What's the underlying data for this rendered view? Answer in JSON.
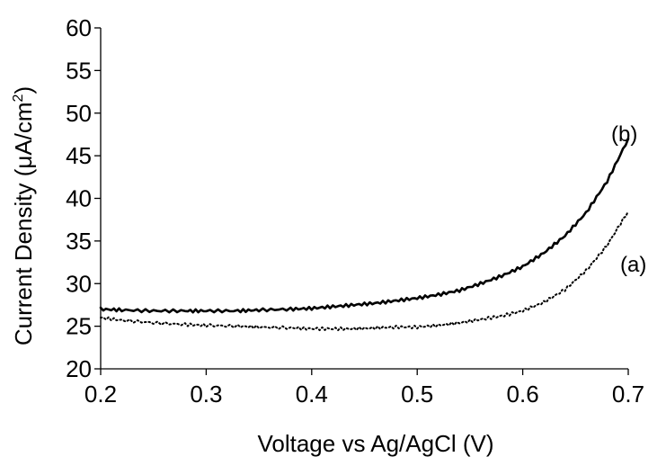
{
  "chart_data": {
    "type": "line",
    "title": "",
    "xlabel": "Voltage vs Ag/AgCl (V)",
    "ylabel": "Current Density (μA/cm²)",
    "ylabel_main": "Current Density (μA/cm",
    "ylabel_sup": "2",
    "ylabel_end": ")",
    "xlim": [
      0.2,
      0.7
    ],
    "ylim": [
      20,
      60
    ],
    "xticks": [
      "0.2",
      "0.3",
      "0.4",
      "0.5",
      "0.6",
      "0.7"
    ],
    "yticks": [
      "20",
      "25",
      "30",
      "35",
      "40",
      "45",
      "50",
      "55",
      "60"
    ],
    "grid": false,
    "series": [
      {
        "name": "(a)",
        "style": "dotted",
        "color": "#000000",
        "x": [
          0.2,
          0.22,
          0.25,
          0.28,
          0.3,
          0.33,
          0.35,
          0.38,
          0.4,
          0.42,
          0.44,
          0.46,
          0.48,
          0.5,
          0.52,
          0.54,
          0.56,
          0.58,
          0.6,
          0.62,
          0.64,
          0.66,
          0.68,
          0.7
        ],
        "y": [
          26.0,
          25.7,
          25.4,
          25.2,
          25.1,
          25.0,
          24.9,
          24.8,
          24.7,
          24.7,
          24.7,
          24.8,
          24.9,
          24.9,
          25.1,
          25.4,
          25.8,
          26.2,
          26.8,
          27.8,
          29.3,
          31.5,
          34.5,
          38.5
        ]
      },
      {
        "name": "(b)",
        "style": "solid",
        "color": "#000000",
        "x": [
          0.2,
          0.22,
          0.25,
          0.28,
          0.3,
          0.33,
          0.35,
          0.38,
          0.4,
          0.42,
          0.44,
          0.46,
          0.48,
          0.5,
          0.52,
          0.54,
          0.56,
          0.58,
          0.6,
          0.62,
          0.64,
          0.66,
          0.68,
          0.7
        ],
        "y": [
          27.0,
          26.9,
          26.8,
          26.8,
          26.8,
          26.8,
          26.9,
          27.0,
          27.1,
          27.3,
          27.5,
          27.7,
          28.0,
          28.3,
          28.7,
          29.2,
          30.0,
          30.9,
          32.0,
          33.6,
          35.6,
          38.3,
          42.0,
          47.0
        ]
      }
    ],
    "annotations": [
      {
        "text": "(a)",
        "series": "(a)"
      },
      {
        "text": "(b)",
        "series": "(b)"
      }
    ]
  }
}
